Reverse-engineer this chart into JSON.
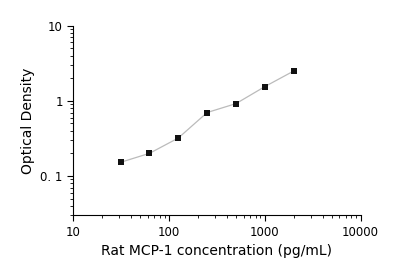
{
  "x": [
    31.25,
    62.5,
    125,
    250,
    500,
    1000,
    2000
  ],
  "y": [
    0.152,
    0.2,
    0.32,
    0.7,
    0.92,
    1.55,
    2.5
  ],
  "marker": "s",
  "marker_color": "#111111",
  "marker_size": 5,
  "line_color": "#bbbbbb",
  "line_style": "-",
  "line_width": 0.9,
  "xlabel": "Rat MCP-1 concentration (pg/mL)",
  "ylabel": "Optical Density",
  "xlim": [
    10,
    10000
  ],
  "ylim": [
    0.03,
    10
  ],
  "xticks": [
    10,
    100,
    1000,
    10000
  ],
  "yticks": [
    0.1,
    1,
    10
  ],
  "background_color": "#ffffff",
  "xlabel_fontsize": 10,
  "ylabel_fontsize": 10,
  "tick_labelsize": 8.5
}
